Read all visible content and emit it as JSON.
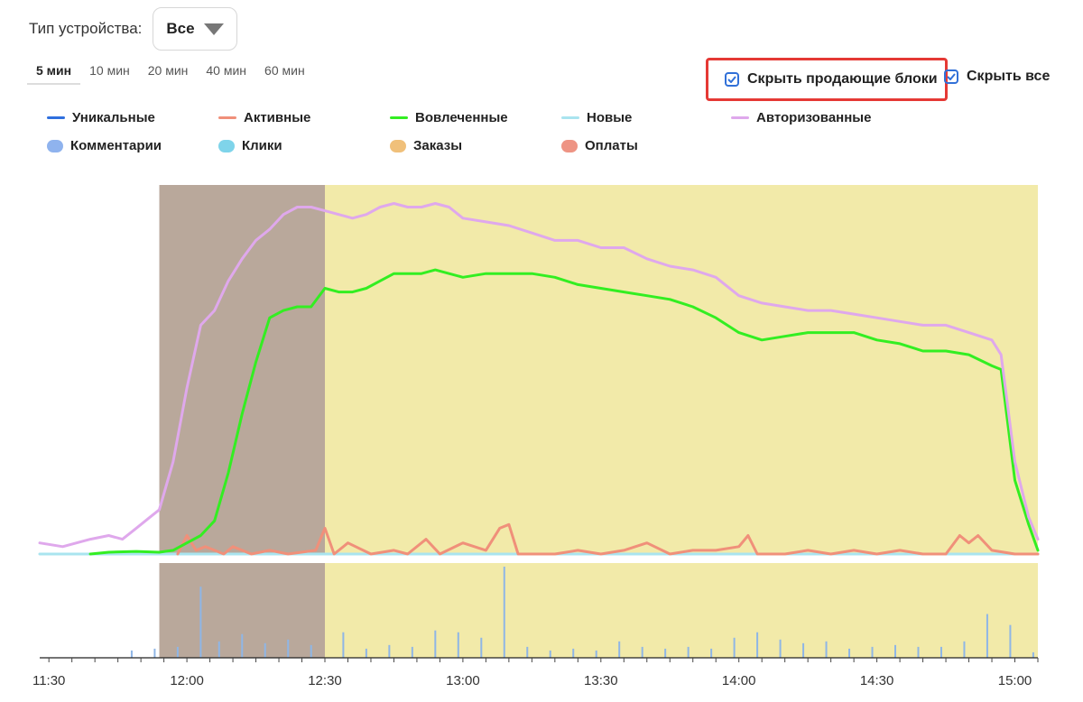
{
  "device": {
    "label": "Тип устройства:",
    "value": "Все"
  },
  "intervals": [
    {
      "label": "5 мин",
      "active": true
    },
    {
      "label": "10 мин",
      "active": false
    },
    {
      "label": "20 мин",
      "active": false
    },
    {
      "label": "40 мин",
      "active": false
    },
    {
      "label": "60 мин",
      "active": false
    }
  ],
  "toggles": {
    "hide_selling": "Скрыть продающие блоки",
    "hide_all": "Скрыть все"
  },
  "legend": {
    "lines": [
      {
        "label": "Уникальные",
        "color": "#2f6fde"
      },
      {
        "label": "Активные",
        "color": "#f0907a"
      },
      {
        "label": "Вовлеченные",
        "color": "#33ee22"
      },
      {
        "label": "Новые",
        "color": "#a9e4ef"
      },
      {
        "label": "Авторизованные",
        "color": "#dfa8ec"
      }
    ],
    "events": [
      {
        "label": "Комментарии",
        "color": "#8fb3ee"
      },
      {
        "label": "Клики",
        "color": "#7fd4ea"
      },
      {
        "label": "Заказы",
        "color": "#f0c07a"
      },
      {
        "label": "Оплаты",
        "color": "#ee9484"
      }
    ]
  },
  "colors": {
    "band_pre": "#b9a89b",
    "band_main": "#f2eaa9",
    "event_bar": "#8fb6e6"
  },
  "chart_data": {
    "type": "line",
    "x_unit": "time (HH:MM)",
    "xlim": [
      "11:28",
      "15:05"
    ],
    "xticks": [
      "11:30",
      "12:00",
      "12:30",
      "13:00",
      "13:30",
      "14:00",
      "14:30",
      "15:00"
    ],
    "bands": [
      {
        "from": "11:54",
        "to": "12:30",
        "color": "#b9a89b"
      },
      {
        "from": "12:30",
        "to": "15:05",
        "color": "#f2eaa9"
      }
    ],
    "series": [
      {
        "name": "Авторизованные",
        "color": "#dfa8ec",
        "points": [
          [
            "11:28",
            3
          ],
          [
            "11:33",
            2
          ],
          [
            "11:39",
            4
          ],
          [
            "11:43",
            5
          ],
          [
            "11:46",
            4
          ],
          [
            "11:49",
            7
          ],
          [
            "11:52",
            10
          ],
          [
            "11:54",
            12
          ],
          [
            "11:57",
            25
          ],
          [
            "12:00",
            45
          ],
          [
            "12:03",
            62
          ],
          [
            "12:06",
            66
          ],
          [
            "12:09",
            74
          ],
          [
            "12:12",
            80
          ],
          [
            "12:15",
            85
          ],
          [
            "12:18",
            88
          ],
          [
            "12:21",
            92
          ],
          [
            "12:24",
            94
          ],
          [
            "12:27",
            94
          ],
          [
            "12:30",
            93
          ],
          [
            "12:33",
            92
          ],
          [
            "12:36",
            91
          ],
          [
            "12:39",
            92
          ],
          [
            "12:42",
            94
          ],
          [
            "12:45",
            95
          ],
          [
            "12:48",
            94
          ],
          [
            "12:51",
            94
          ],
          [
            "12:54",
            95
          ],
          [
            "12:57",
            94
          ],
          [
            "13:00",
            91
          ],
          [
            "13:05",
            90
          ],
          [
            "13:10",
            89
          ],
          [
            "13:15",
            87
          ],
          [
            "13:20",
            85
          ],
          [
            "13:25",
            85
          ],
          [
            "13:30",
            83
          ],
          [
            "13:35",
            83
          ],
          [
            "13:40",
            80
          ],
          [
            "13:45",
            78
          ],
          [
            "13:50",
            77
          ],
          [
            "13:55",
            75
          ],
          [
            "14:00",
            70
          ],
          [
            "14:05",
            68
          ],
          [
            "14:10",
            67
          ],
          [
            "14:15",
            66
          ],
          [
            "14:20",
            66
          ],
          [
            "14:25",
            65
          ],
          [
            "14:30",
            64
          ],
          [
            "14:35",
            63
          ],
          [
            "14:40",
            62
          ],
          [
            "14:45",
            62
          ],
          [
            "14:50",
            60
          ],
          [
            "14:55",
            58
          ],
          [
            "14:57",
            54
          ],
          [
            "15:00",
            25
          ],
          [
            "15:03",
            10
          ],
          [
            "15:05",
            4
          ]
        ]
      },
      {
        "name": "Вовлеченные",
        "color": "#33ee22",
        "points": [
          [
            "11:39",
            0
          ],
          [
            "11:43",
            0.5
          ],
          [
            "11:49",
            0.7
          ],
          [
            "11:54",
            0.5
          ],
          [
            "11:57",
            1
          ],
          [
            "12:00",
            3
          ],
          [
            "12:03",
            5
          ],
          [
            "12:06",
            9
          ],
          [
            "12:09",
            22
          ],
          [
            "12:12",
            38
          ],
          [
            "12:15",
            52
          ],
          [
            "12:18",
            64
          ],
          [
            "12:21",
            66
          ],
          [
            "12:24",
            67
          ],
          [
            "12:27",
            67
          ],
          [
            "12:30",
            72
          ],
          [
            "12:33",
            71
          ],
          [
            "12:36",
            71
          ],
          [
            "12:39",
            72
          ],
          [
            "12:42",
            74
          ],
          [
            "12:45",
            76
          ],
          [
            "12:48",
            76
          ],
          [
            "12:51",
            76
          ],
          [
            "12:54",
            77
          ],
          [
            "12:57",
            76
          ],
          [
            "13:00",
            75
          ],
          [
            "13:05",
            76
          ],
          [
            "13:10",
            76
          ],
          [
            "13:15",
            76
          ],
          [
            "13:20",
            75
          ],
          [
            "13:25",
            73
          ],
          [
            "13:30",
            72
          ],
          [
            "13:35",
            71
          ],
          [
            "13:40",
            70
          ],
          [
            "13:45",
            69
          ],
          [
            "13:50",
            67
          ],
          [
            "13:55",
            64
          ],
          [
            "14:00",
            60
          ],
          [
            "14:05",
            58
          ],
          [
            "14:10",
            59
          ],
          [
            "14:15",
            60
          ],
          [
            "14:20",
            60
          ],
          [
            "14:25",
            60
          ],
          [
            "14:30",
            58
          ],
          [
            "14:35",
            57
          ],
          [
            "14:40",
            55
          ],
          [
            "14:45",
            55
          ],
          [
            "14:50",
            54
          ],
          [
            "14:55",
            51
          ],
          [
            "14:57",
            50
          ],
          [
            "15:00",
            20
          ],
          [
            "15:03",
            8
          ],
          [
            "15:05",
            1
          ]
        ]
      },
      {
        "name": "Активные",
        "color": "#f0907a",
        "points": [
          [
            "11:58",
            0
          ],
          [
            "12:00",
            5
          ],
          [
            "12:02",
            1
          ],
          [
            "12:04",
            2
          ],
          [
            "12:06",
            1
          ],
          [
            "12:08",
            0
          ],
          [
            "12:10",
            2
          ],
          [
            "12:14",
            0
          ],
          [
            "12:18",
            1
          ],
          [
            "12:22",
            0
          ],
          [
            "12:28",
            1
          ],
          [
            "12:30",
            7
          ],
          [
            "12:32",
            0
          ],
          [
            "12:35",
            3
          ],
          [
            "12:40",
            0
          ],
          [
            "12:45",
            1
          ],
          [
            "12:48",
            0
          ],
          [
            "12:52",
            4
          ],
          [
            "12:55",
            0
          ],
          [
            "13:00",
            3
          ],
          [
            "13:05",
            1
          ],
          [
            "13:08",
            7
          ],
          [
            "13:10",
            8
          ],
          [
            "13:12",
            0
          ],
          [
            "13:20",
            0
          ],
          [
            "13:25",
            1
          ],
          [
            "13:30",
            0
          ],
          [
            "13:35",
            1
          ],
          [
            "13:40",
            3
          ],
          [
            "13:45",
            0
          ],
          [
            "13:50",
            1
          ],
          [
            "13:55",
            1
          ],
          [
            "14:00",
            2
          ],
          [
            "14:02",
            5
          ],
          [
            "14:04",
            0
          ],
          [
            "14:10",
            0
          ],
          [
            "14:15",
            1
          ],
          [
            "14:20",
            0
          ],
          [
            "14:25",
            1
          ],
          [
            "14:30",
            0
          ],
          [
            "14:35",
            1
          ],
          [
            "14:40",
            0
          ],
          [
            "14:45",
            0
          ],
          [
            "14:48",
            5
          ],
          [
            "14:50",
            3
          ],
          [
            "14:52",
            5
          ],
          [
            "14:55",
            1
          ],
          [
            "15:00",
            0
          ],
          [
            "15:05",
            0
          ]
        ]
      },
      {
        "name": "Новые",
        "color": "#a9e4ef",
        "points": [
          [
            "11:28",
            0
          ],
          [
            "15:05",
            0
          ]
        ]
      }
    ],
    "ylim": [
      0,
      100
    ],
    "events": [
      {
        "time": "11:48",
        "value": 8
      },
      {
        "time": "11:53",
        "value": 10
      },
      {
        "time": "11:58",
        "value": 12
      },
      {
        "time": "12:03",
        "value": 78
      },
      {
        "time": "12:07",
        "value": 18
      },
      {
        "time": "12:12",
        "value": 26
      },
      {
        "time": "12:17",
        "value": 16
      },
      {
        "time": "12:22",
        "value": 20
      },
      {
        "time": "12:27",
        "value": 14
      },
      {
        "time": "12:34",
        "value": 28
      },
      {
        "time": "12:39",
        "value": 10
      },
      {
        "time": "12:44",
        "value": 14
      },
      {
        "time": "12:49",
        "value": 12
      },
      {
        "time": "12:54",
        "value": 30
      },
      {
        "time": "12:59",
        "value": 28
      },
      {
        "time": "13:04",
        "value": 22
      },
      {
        "time": "13:09",
        "value": 100
      },
      {
        "time": "13:14",
        "value": 12
      },
      {
        "time": "13:19",
        "value": 8
      },
      {
        "time": "13:24",
        "value": 10
      },
      {
        "time": "13:29",
        "value": 8
      },
      {
        "time": "13:34",
        "value": 18
      },
      {
        "time": "13:39",
        "value": 12
      },
      {
        "time": "13:44",
        "value": 10
      },
      {
        "time": "13:49",
        "value": 12
      },
      {
        "time": "13:54",
        "value": 10
      },
      {
        "time": "13:59",
        "value": 22
      },
      {
        "time": "14:04",
        "value": 28
      },
      {
        "time": "14:09",
        "value": 20
      },
      {
        "time": "14:14",
        "value": 16
      },
      {
        "time": "14:19",
        "value": 18
      },
      {
        "time": "14:24",
        "value": 10
      },
      {
        "time": "14:29",
        "value": 12
      },
      {
        "time": "14:34",
        "value": 14
      },
      {
        "time": "14:39",
        "value": 12
      },
      {
        "time": "14:44",
        "value": 12
      },
      {
        "time": "14:49",
        "value": 18
      },
      {
        "time": "14:54",
        "value": 48
      },
      {
        "time": "14:59",
        "value": 36
      },
      {
        "time": "15:04",
        "value": 6
      }
    ]
  }
}
